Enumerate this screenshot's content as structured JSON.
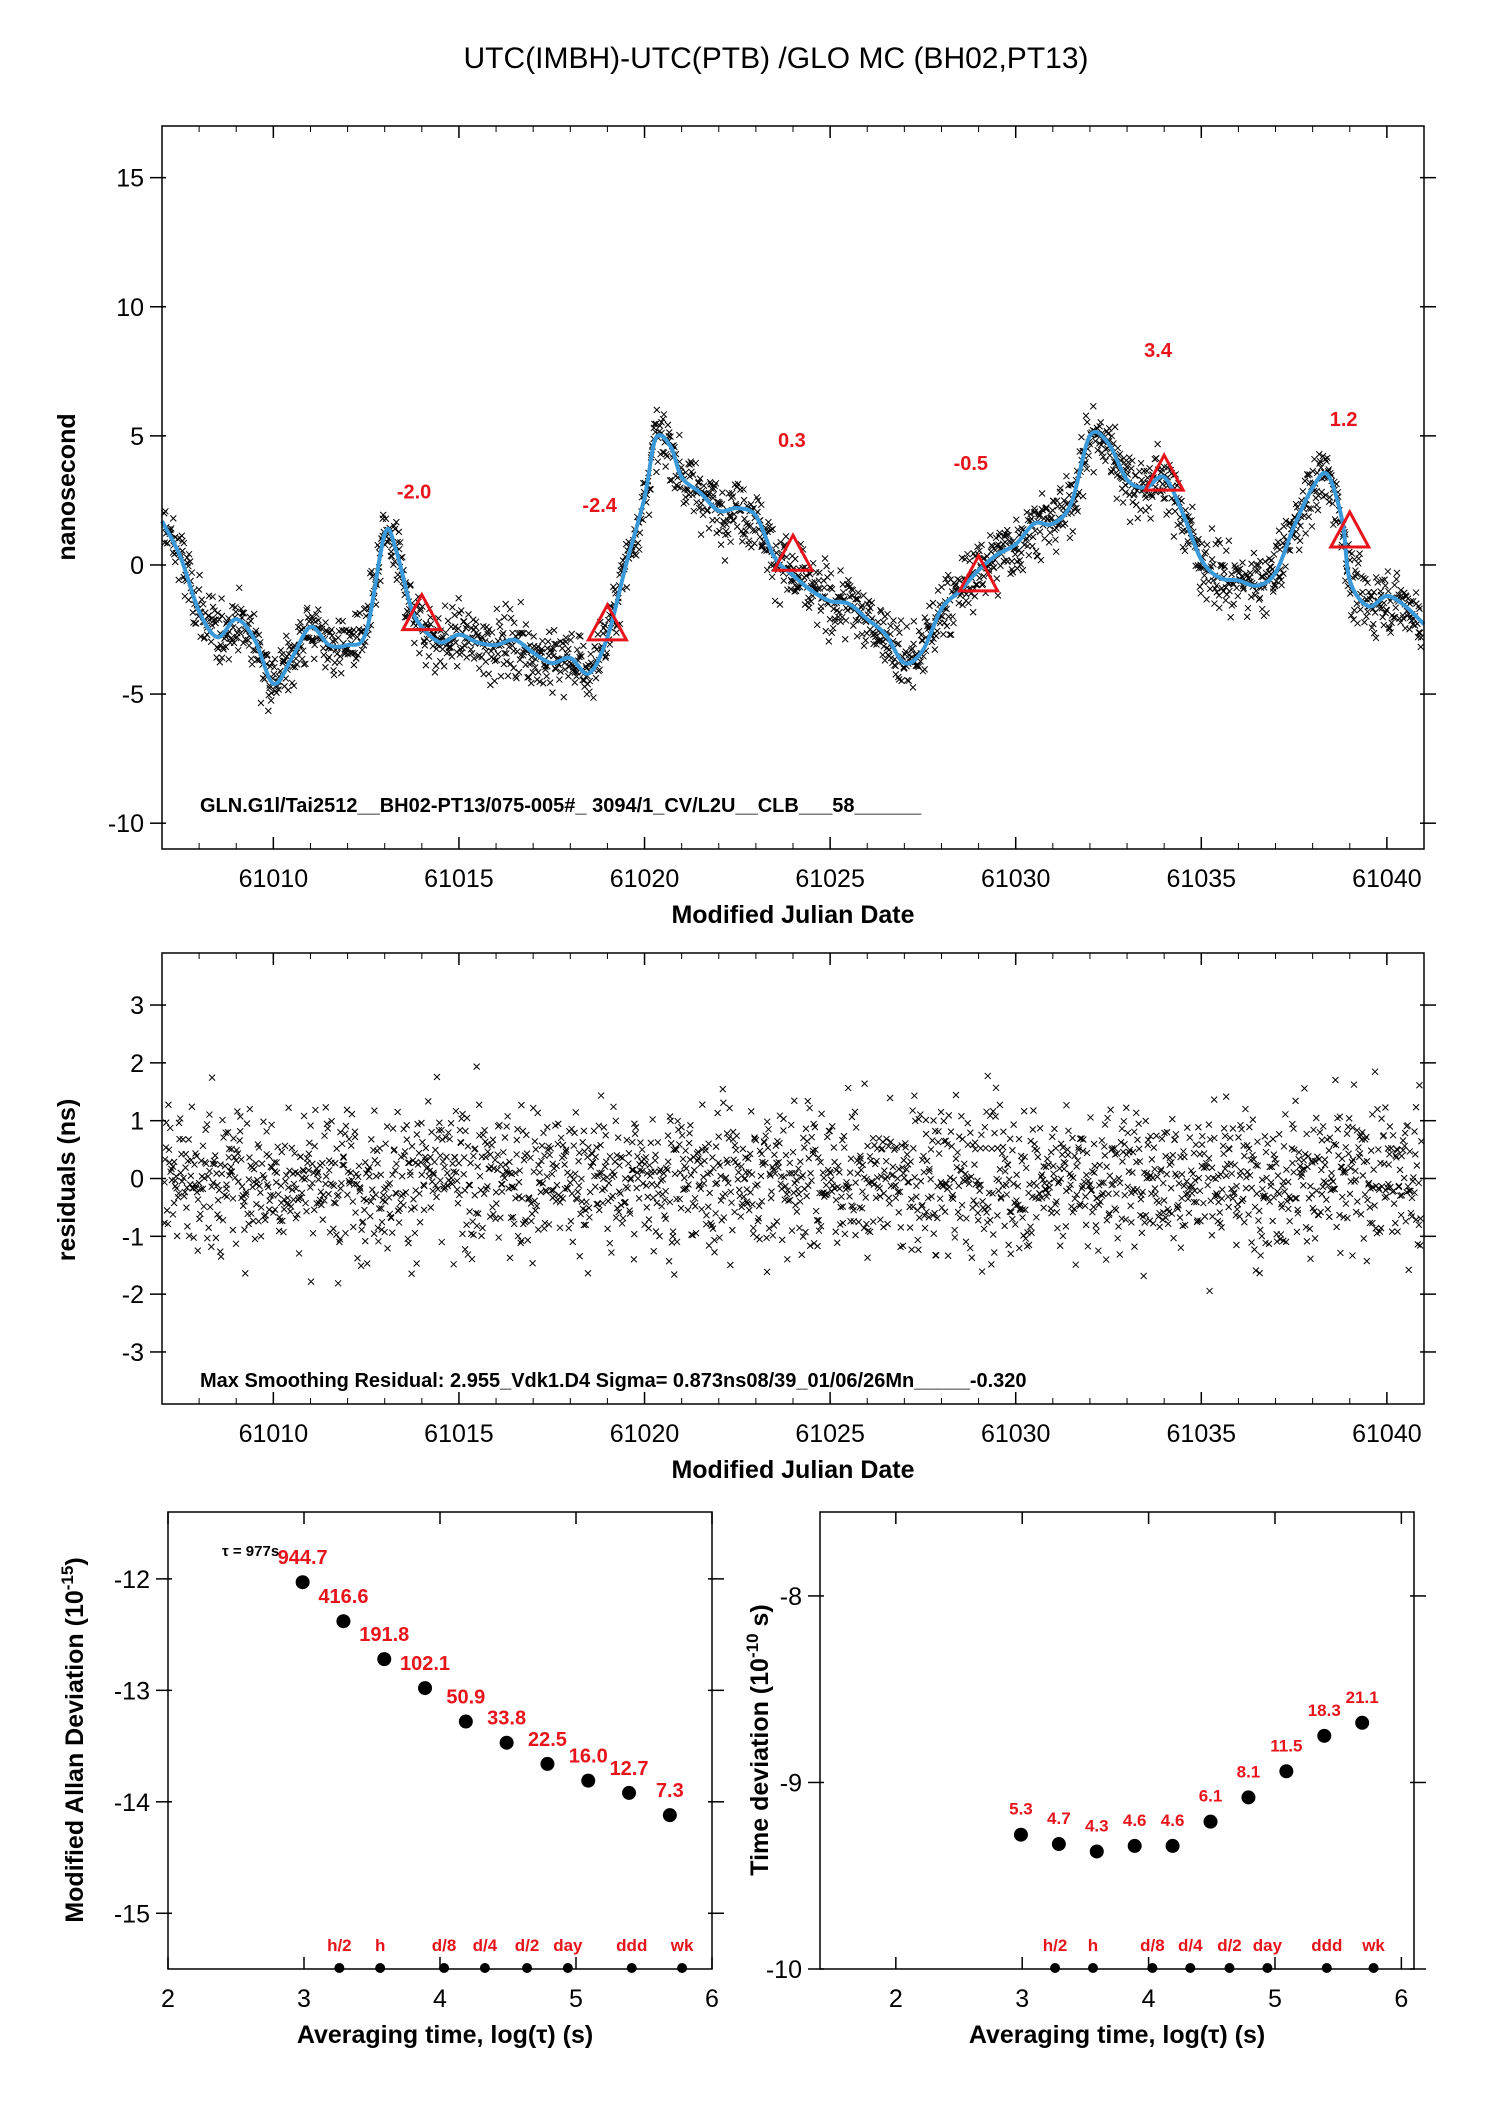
{
  "figure_title": "UTC(IMBH)-UTC(PTB)  /GLO  MC  (BH02,PT13)",
  "colors": {
    "smooth_line": "#3a9ad9",
    "markers": "#e8141c",
    "labels": "#e8141c",
    "points": "#000000"
  },
  "chart_data": [
    {
      "id": "top",
      "type": "scatter",
      "ylabel": "nanosecond",
      "xlabel": "Modified Julian Date",
      "xlim": [
        61007,
        61041
      ],
      "ylim": [
        -11,
        17
      ],
      "xticks": [
        61010,
        61015,
        61020,
        61025,
        61030,
        61035,
        61040
      ],
      "yticks": [
        -10,
        -5,
        0,
        5,
        10,
        15
      ],
      "note": "GLN.G1l/Tai2512__BH02-PT13/075-005#_  3094/1_CV/L2U__CLB___58______",
      "smooth_series": {
        "x": [
          61007,
          61007.5,
          61008,
          61008.5,
          61009,
          61009.5,
          61010,
          61010.5,
          61011,
          61011.5,
          61012,
          61012.5,
          61013,
          61013.3,
          61013.7,
          61014,
          61014.5,
          61015,
          61015.5,
          61016,
          61016.5,
          61017,
          61017.5,
          61018,
          61018.5,
          61019,
          61019.5,
          61020,
          61020.3,
          61020.7,
          61021,
          61021.5,
          61022,
          61022.5,
          61023,
          61023.5,
          61024,
          61024.5,
          61025,
          61025.5,
          61026,
          61026.5,
          61027,
          61027.5,
          61028,
          61028.5,
          61029,
          61029.5,
          61030,
          61030.5,
          61031,
          61031.5,
          61032,
          61032.5,
          61033,
          61033.5,
          61034,
          61034.5,
          61035,
          61035.5,
          61036,
          61036.5,
          61037,
          61037.5,
          61038,
          61038.4,
          61038.8,
          61039,
          61039.5,
          61040,
          61040.5,
          61041
        ],
        "y": [
          1.7,
          0.3,
          -1.8,
          -2.8,
          -2.1,
          -2.9,
          -4.6,
          -3.6,
          -2.4,
          -3.1,
          -3.1,
          -2.6,
          1.2,
          0.6,
          -1.6,
          -2.4,
          -3.0,
          -2.7,
          -3.0,
          -3.1,
          -2.9,
          -3.4,
          -3.8,
          -3.6,
          -4.2,
          -2.8,
          0.0,
          2.6,
          4.9,
          4.6,
          3.4,
          2.8,
          2.1,
          2.2,
          1.9,
          0.3,
          -0.4,
          -1.0,
          -1.4,
          -1.5,
          -2.1,
          -2.7,
          -3.8,
          -3.3,
          -1.7,
          -1.0,
          -0.2,
          0.4,
          0.8,
          1.6,
          1.6,
          2.4,
          5.0,
          4.7,
          3.3,
          3.0,
          3.4,
          2.0,
          0.2,
          -0.5,
          -0.6,
          -0.8,
          -0.3,
          1.5,
          3.0,
          3.5,
          1.7,
          -0.6,
          -1.6,
          -1.2,
          -1.6,
          -2.3
        ]
      },
      "markers": [
        {
          "x": 61014,
          "y": -2.0,
          "label": "-2.0"
        },
        {
          "x": 61019,
          "y": -2.4,
          "label": "-2.4"
        },
        {
          "x": 61024,
          "y": 0.3,
          "label": "0.3"
        },
        {
          "x": 61029,
          "y": -0.5,
          "label": "-0.5"
        },
        {
          "x": 61034,
          "y": 3.4,
          "label": "3.4"
        },
        {
          "x": 61039,
          "y": 1.2,
          "label": "1.2"
        }
      ]
    },
    {
      "id": "middle",
      "type": "scatter",
      "ylabel": "residuals (ns)",
      "xlabel": "Modified Julian Date",
      "xlim": [
        61007,
        61041
      ],
      "ylim": [
        -3.9,
        3.9
      ],
      "xticks": [
        61010,
        61015,
        61020,
        61025,
        61030,
        61035,
        61040
      ],
      "yticks": [
        -3,
        -2,
        -1,
        0,
        1,
        2,
        3
      ],
      "note": "Max Smoothing Residual: 2.955_Vdk1.D4  Sigma= 0.873ns08/39_01/06/26Mn_____-0.320",
      "sigma_ns": 0.873,
      "max_residual": 2.955
    },
    {
      "id": "adev",
      "type": "scatter",
      "ylabel": "Modified Allan Deviation (10",
      "ylabel_exp": "-15",
      "ylabel_end": ")",
      "xlabel": "Averaging time, log(τ) (s)",
      "xlim": [
        2,
        6
      ],
      "ylim": [
        -15.5,
        -11.4
      ],
      "xticks": [
        2,
        3,
        4,
        5,
        6
      ],
      "yticks": [
        -15,
        -14,
        -13,
        -12
      ],
      "tau_note": "τ = 977s",
      "points": [
        {
          "x": 2.99,
          "y": -12.03,
          "label": "944.7"
        },
        {
          "x": 3.29,
          "y": -12.38,
          "label": "416.6"
        },
        {
          "x": 3.59,
          "y": -12.72,
          "label": "191.8"
        },
        {
          "x": 3.89,
          "y": -12.98,
          "label": "102.1"
        },
        {
          "x": 4.19,
          "y": -13.28,
          "label": "50.9"
        },
        {
          "x": 4.49,
          "y": -13.47,
          "label": "33.8"
        },
        {
          "x": 4.79,
          "y": -13.66,
          "label": "22.5"
        },
        {
          "x": 5.09,
          "y": -13.81,
          "label": "16.0"
        },
        {
          "x": 5.39,
          "y": -13.92,
          "label": "12.7"
        },
        {
          "x": 5.69,
          "y": -14.12,
          "label": "7.3"
        }
      ],
      "time_markers": [
        {
          "x": 3.26,
          "label": "h/2"
        },
        {
          "x": 3.56,
          "label": "h"
        },
        {
          "x": 4.03,
          "label": "d/8"
        },
        {
          "x": 4.33,
          "label": "d/4"
        },
        {
          "x": 4.64,
          "label": "d/2"
        },
        {
          "x": 4.94,
          "label": "day"
        },
        {
          "x": 5.41,
          "label": "ddd"
        },
        {
          "x": 5.78,
          "label": "wk"
        }
      ]
    },
    {
      "id": "tdev",
      "type": "scatter",
      "ylabel": "Time deviation (10",
      "ylabel_exp": "-10",
      "ylabel_end": " s)",
      "xlabel": "Averaging time, log(τ) (s)",
      "xlim": [
        1.4,
        6.1
      ],
      "ylim": [
        -10.0,
        -7.55
      ],
      "xticks": [
        2,
        3,
        4,
        5,
        6
      ],
      "yticks": [
        -10,
        -9,
        -8
      ],
      "points": [
        {
          "x": 2.99,
          "y": -9.28,
          "label": "5.3"
        },
        {
          "x": 3.29,
          "y": -9.33,
          "label": "4.7"
        },
        {
          "x": 3.59,
          "y": -9.37,
          "label": "4.3"
        },
        {
          "x": 3.89,
          "y": -9.34,
          "label": "4.6"
        },
        {
          "x": 4.19,
          "y": -9.34,
          "label": "4.6"
        },
        {
          "x": 4.49,
          "y": -9.21,
          "label": "6.1"
        },
        {
          "x": 4.79,
          "y": -9.08,
          "label": "8.1"
        },
        {
          "x": 5.09,
          "y": -8.94,
          "label": "11.5"
        },
        {
          "x": 5.39,
          "y": -8.75,
          "label": "18.3"
        },
        {
          "x": 5.69,
          "y": -8.68,
          "label": "21.1"
        }
      ],
      "time_markers": [
        {
          "x": 3.26,
          "label": "h/2"
        },
        {
          "x": 3.56,
          "label": "h"
        },
        {
          "x": 4.03,
          "label": "d/8"
        },
        {
          "x": 4.33,
          "label": "d/4"
        },
        {
          "x": 4.64,
          "label": "d/2"
        },
        {
          "x": 4.94,
          "label": "day"
        },
        {
          "x": 5.41,
          "label": "ddd"
        },
        {
          "x": 5.78,
          "label": "wk"
        }
      ]
    }
  ]
}
